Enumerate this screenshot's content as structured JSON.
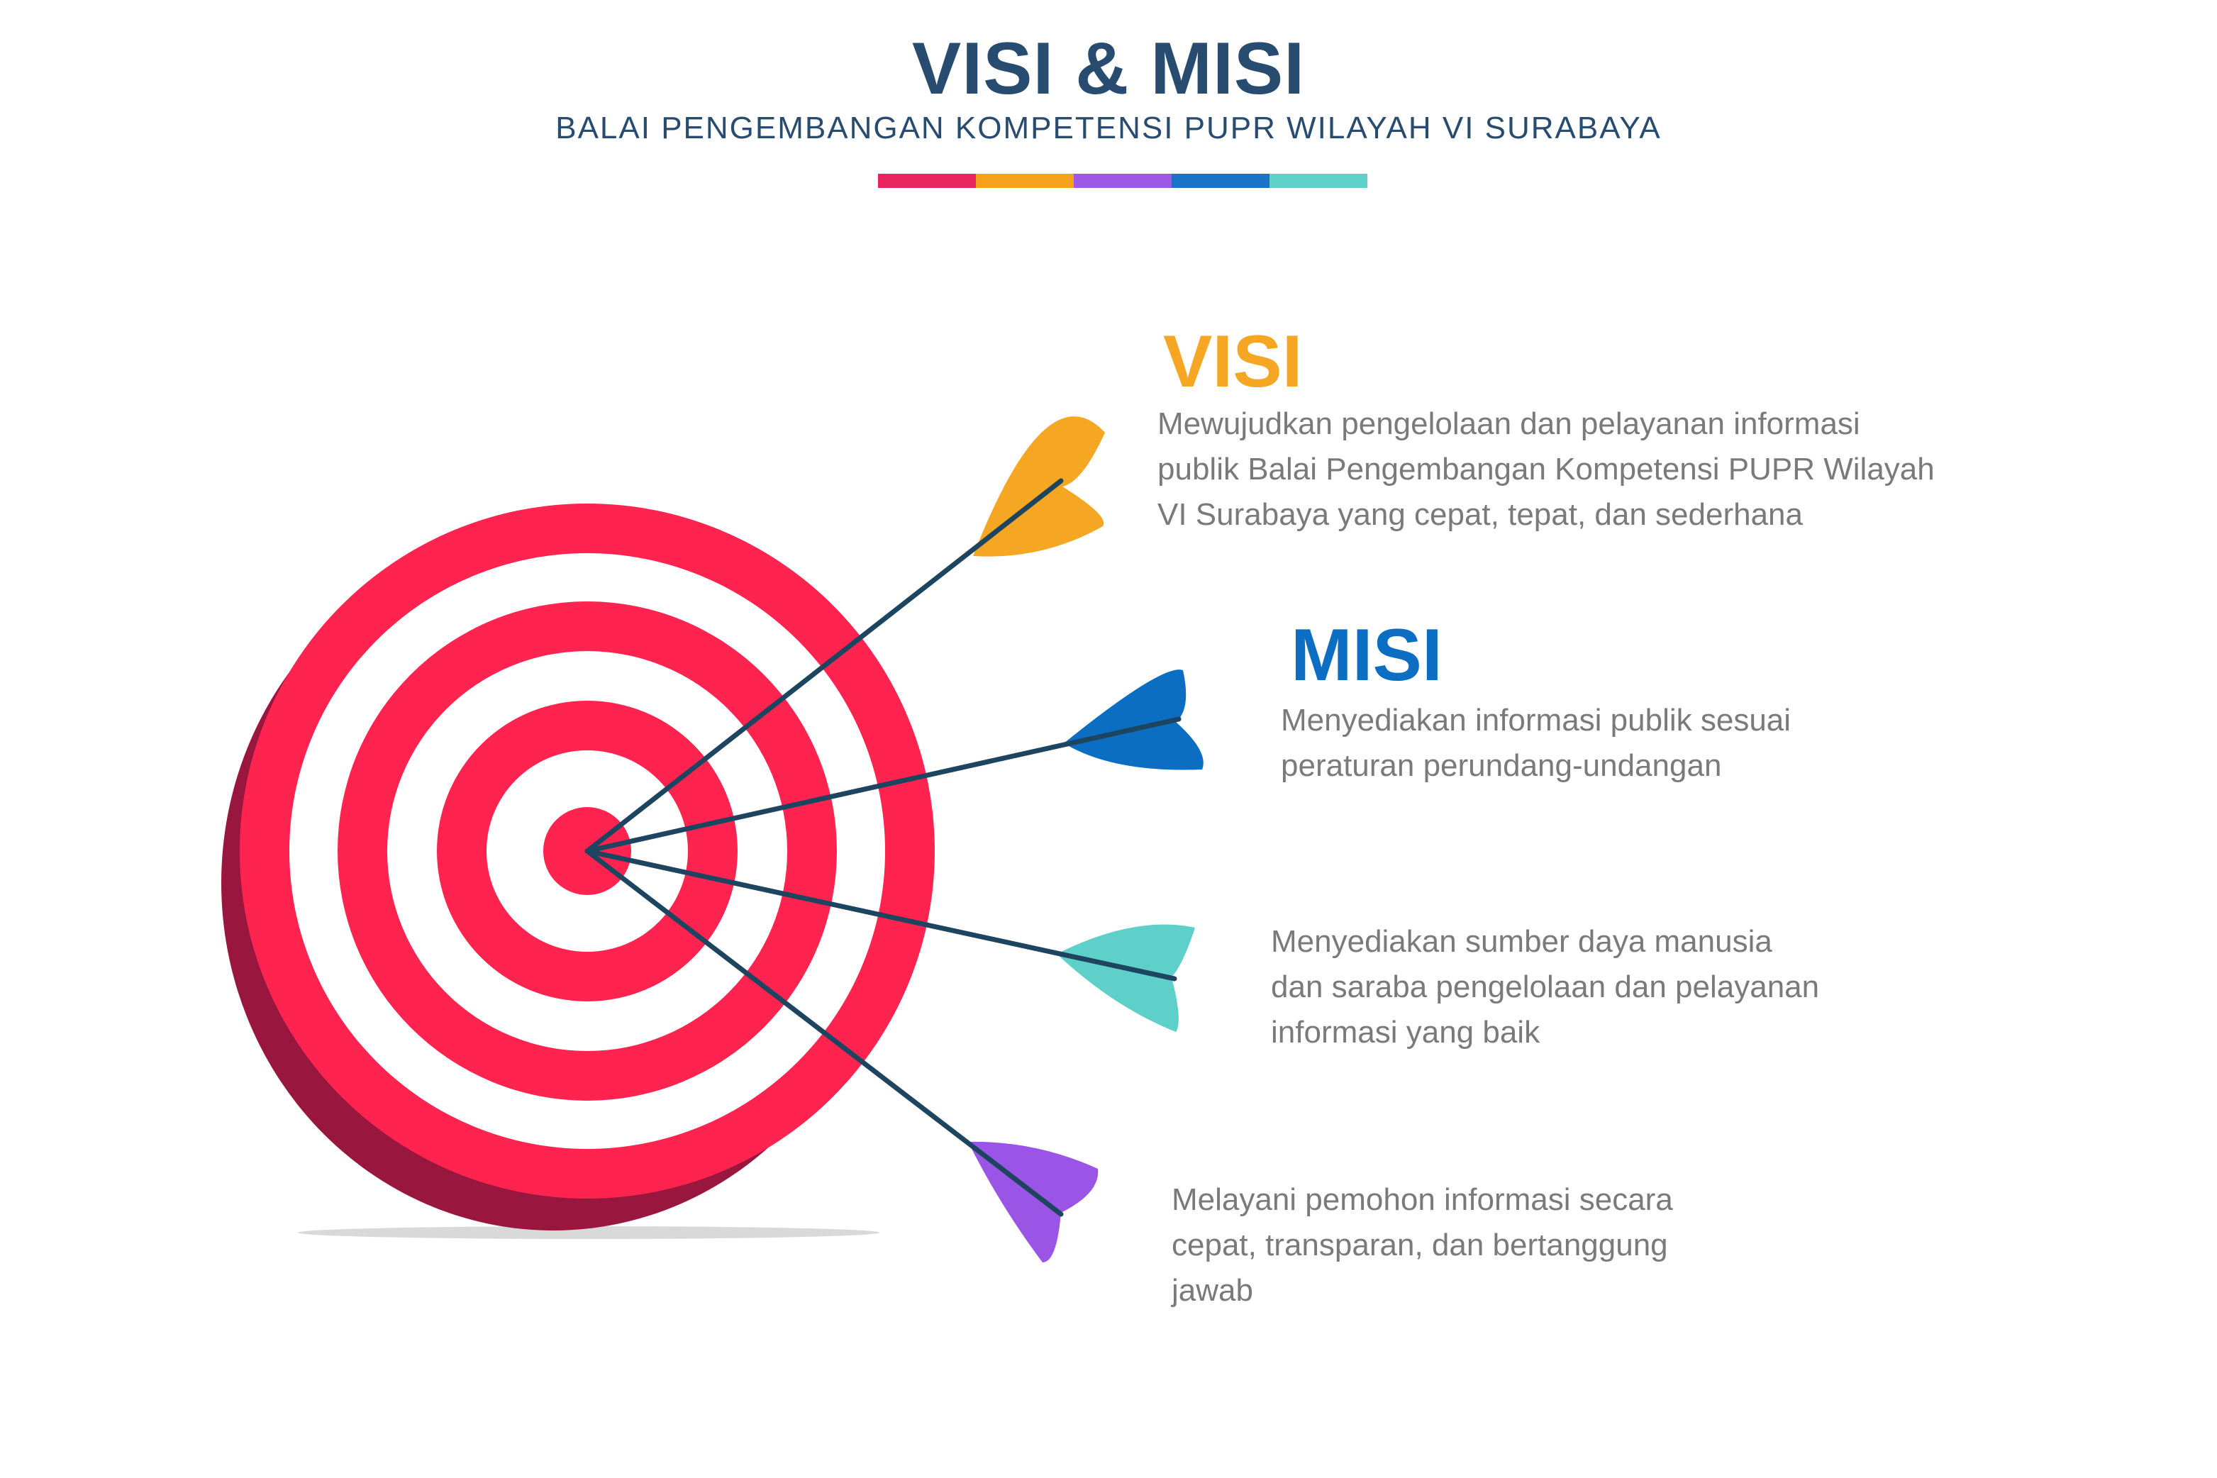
{
  "header": {
    "title": "VISI & MISI",
    "subtitle": "BALAI PENGEMBANGAN KOMPETENSI PUPR WILAYAH VI SURABAYA",
    "color_bar": [
      "#e8245f",
      "#f5a11c",
      "#9b59e6",
      "#1a73c9",
      "#5ecfc9"
    ]
  },
  "visi": {
    "heading": "VISI",
    "color": "#f5a623",
    "lines": [
      "Mewujudkan pengelolaan dan pelayanan informasi",
      "publik Balai Pengembangan Kompetensi PUPR Wilayah",
      "VI Surabaya yang cepat, tepat, dan sederhana"
    ]
  },
  "misi": {
    "heading": "MISI",
    "color": "#0b6ec2",
    "items": [
      {
        "lines": [
          "Menyediakan informasi publik sesuai",
          "peraturan perundang-undangan"
        ]
      },
      {
        "lines": [
          "Menyediakan sumber daya manusia",
          "dan saraba pengelolaan dan pelayanan",
          "informasi yang baik"
        ]
      },
      {
        "lines": [
          "Melayani pemohon informasi secara",
          "cepat, transparan, dan bertanggung",
          "jawab"
        ]
      }
    ]
  },
  "graphic": {
    "target_colors": {
      "ring": "#ff2450",
      "side": "#99173f",
      "gap": "#ffffff"
    },
    "arrow_shaft_color": "#1e4560",
    "arrow_fletching_colors": [
      "#f5a623",
      "#0b6ec2",
      "#5ecfc9",
      "#9b55e6"
    ]
  }
}
